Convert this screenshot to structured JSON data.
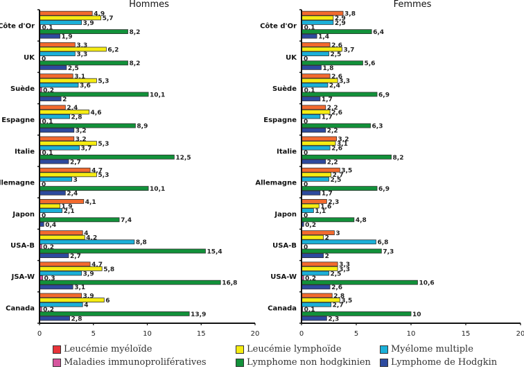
{
  "chart_data": [
    {
      "type": "bar",
      "orientation": "horizontal",
      "title": "Hommes",
      "xlabel": "",
      "ylabel": "",
      "xlim": [
        0,
        20
      ],
      "xticks": [
        "0",
        "5",
        "10",
        "15",
        "20"
      ],
      "grid": false,
      "categories": [
        "Côte d'Or",
        "UK",
        "Suède",
        "Espagne",
        "Italie",
        "Allemagne",
        "Japon",
        "USA-B",
        "JSA-W",
        "Canada"
      ],
      "series": [
        {
          "name": "Leucémie myéloïde",
          "values": [
            4.9,
            3.3,
            3.1,
            2.4,
            3.2,
            4.7,
            4.1,
            4,
            4.7,
            3.9
          ],
          "labels": [
            "4,9",
            "3,3",
            "3,1",
            "2,4",
            "3,2",
            "4,7",
            "4,1",
            "4",
            "4,7",
            "3,9"
          ]
        },
        {
          "name": "Leucémie lymphoïde",
          "values": [
            5.7,
            6.2,
            5.3,
            4.6,
            5.3,
            5.3,
            1.9,
            4.2,
            5.8,
            6
          ],
          "labels": [
            "5,7",
            "6,2",
            "5,3",
            "4,6",
            "5,3",
            "5,3",
            "1,9",
            "4,2",
            "5,8",
            "6"
          ]
        },
        {
          "name": "Myélome multiple",
          "values": [
            3.9,
            3.3,
            3.6,
            2.8,
            3.7,
            3,
            2.1,
            8.8,
            3.9,
            4
          ],
          "labels": [
            "3,9",
            "3,3",
            "3,6",
            "2,8",
            "3,7",
            "3",
            "2,1",
            "8,8",
            "3,9",
            "4"
          ]
        },
        {
          "name": "Maladies immunoprolifératives",
          "values": [
            0.1,
            0,
            0.2,
            0.1,
            0.1,
            0,
            0,
            0.2,
            0.3,
            0.2
          ],
          "labels": [
            "0,1",
            "0",
            "0,2",
            "0,1",
            "0,1",
            "0",
            "0",
            "0,2",
            "0,3",
            "0,2"
          ]
        },
        {
          "name": "Lymphome non hodgkinien",
          "values": [
            8.2,
            8.2,
            10.1,
            8.9,
            12.5,
            10.1,
            7.4,
            15.4,
            16.8,
            13.9
          ],
          "labels": [
            "8,2",
            "8,2",
            "10,1",
            "8,9",
            "12,5",
            "10,1",
            "7,4",
            "15,4",
            "16,8",
            "13,9"
          ]
        },
        {
          "name": "Lymphome de Hodgkin",
          "values": [
            1.9,
            2.5,
            2,
            3.2,
            2.7,
            2.4,
            0.4,
            2.7,
            3.1,
            2.8
          ],
          "labels": [
            "1,9",
            "2,5",
            "2",
            "3,2",
            "2,7",
            "2,4",
            "0,4",
            "2,7",
            "3,1",
            "2,8"
          ]
        }
      ]
    },
    {
      "type": "bar",
      "orientation": "horizontal",
      "title": "Femmes",
      "xlabel": "",
      "ylabel": "",
      "xlim": [
        0,
        20
      ],
      "xticks": [
        "0",
        "5",
        "10",
        "15",
        "20"
      ],
      "grid": false,
      "categories": [
        "Côte d'Or",
        "UK",
        "Suède",
        "Espagne",
        "Italie",
        "Allemagne",
        "Japon",
        "USA-B",
        "USA-W",
        "Canada"
      ],
      "series": [
        {
          "name": "Leucémie myéloïde",
          "values": [
            3.8,
            2.6,
            2.6,
            2.2,
            3.2,
            3.5,
            2.3,
            3,
            3.3,
            2.8
          ],
          "labels": [
            "3,8",
            "2,6",
            "2,6",
            "2,2",
            "3,2",
            "3,5",
            "2,3",
            "3",
            "3,3",
            "2,8"
          ]
        },
        {
          "name": "Leucémie lymphoïde",
          "values": [
            2.9,
            3.7,
            3.3,
            2.6,
            3.1,
            2.7,
            1.6,
            2,
            3.3,
            3.5
          ],
          "labels": [
            "2,9",
            "3,7",
            "3,3",
            "2,6",
            "3,1",
            "2,7",
            "1,6",
            "2",
            "3,3",
            "3,5"
          ]
        },
        {
          "name": "Myélome multiple",
          "values": [
            2.9,
            2.5,
            2.4,
            1.7,
            2.6,
            2.5,
            1.1,
            6.8,
            2.5,
            2.7
          ],
          "labels": [
            "2,9",
            "2,5",
            "2,4",
            "1,7",
            "2,6",
            "2,5",
            "1,1",
            "6,8",
            "2,5",
            "2,7"
          ]
        },
        {
          "name": "Maladies immunoprolifératives",
          "values": [
            0.1,
            0,
            0.1,
            0,
            0,
            0,
            0,
            0,
            0.2,
            0.1
          ],
          "labels": [
            "0,1",
            "0",
            "0,1",
            "0",
            "0",
            "0",
            "0",
            "0",
            "0,2",
            "0,1"
          ]
        },
        {
          "name": "Lymphome non hodgkinien",
          "values": [
            6.4,
            5.6,
            6.9,
            6.3,
            8.2,
            6.9,
            4.8,
            7.3,
            10.6,
            10
          ],
          "labels": [
            "6,4",
            "5,6",
            "6,9",
            "6,3",
            "8,2",
            "6,9",
            "4,8",
            "7,3",
            "10,6",
            "10"
          ]
        },
        {
          "name": "Lymphome de Hodgkin",
          "values": [
            1.4,
            1.8,
            1.7,
            2.2,
            2.2,
            1.7,
            0.2,
            2,
            2.6,
            2.3
          ],
          "labels": [
            "1,4",
            "1,8",
            "1,7",
            "2,2",
            "2,2",
            "1,7",
            "0,2",
            "2",
            "2,6",
            "2,3"
          ]
        }
      ]
    }
  ],
  "series_colors": [
    "#f26a2e",
    "#f5ec12",
    "#1bb0d8",
    "#d6569e",
    "#12913a",
    "#2d4a9e"
  ],
  "legend": {
    "placement": "bottom",
    "items": [
      {
        "label": "Leucémie myéloïde",
        "color": "#e8343a"
      },
      {
        "label": "Leucémie lymphoïde",
        "color": "#f5ec12"
      },
      {
        "label": "Myélome multiple",
        "color": "#1bb0d8"
      },
      {
        "label": "Maladies immunoprolifératives",
        "color": "#d6569e"
      },
      {
        "label": "Lymphome non hodgkinien",
        "color": "#12913a"
      },
      {
        "label": "Lymphome de Hodgkin",
        "color": "#2d4a9e"
      }
    ]
  }
}
